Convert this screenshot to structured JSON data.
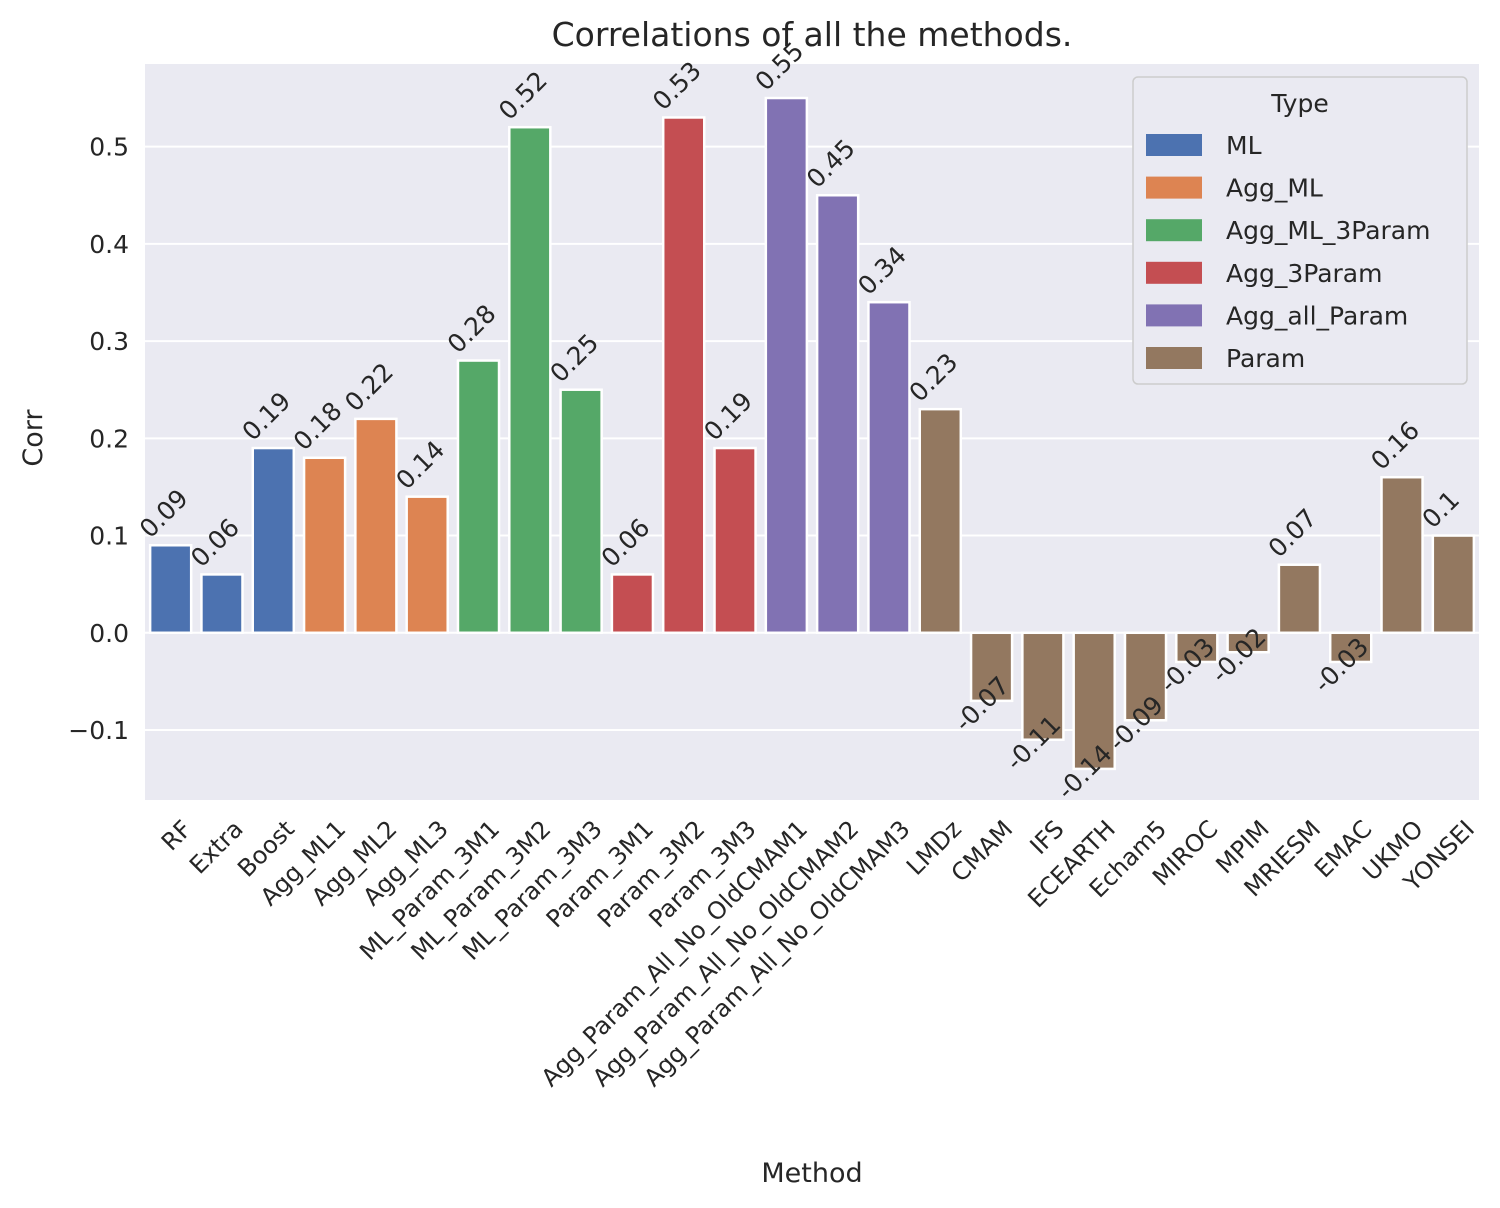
{
  "chart_data": {
    "type": "bar",
    "title": "Correlations of all the methods.",
    "xlabel": "Method",
    "ylabel": "Corr",
    "ylim": [
      -0.172,
      0.585
    ],
    "yticks": [
      -0.1,
      0.0,
      0.1,
      0.2,
      0.3,
      0.4,
      0.5
    ],
    "ytick_labels": [
      "−0.1",
      "0.0",
      "0.1",
      "0.2",
      "0.3",
      "0.4",
      "0.5"
    ],
    "grid": true,
    "legend": {
      "title": "Type",
      "position": "top-right",
      "entries": [
        {
          "name": "ML",
          "color": "#4c72b0"
        },
        {
          "name": "Agg_ML",
          "color": "#dd8452"
        },
        {
          "name": "Agg_ML_3Param",
          "color": "#55a868"
        },
        {
          "name": "Agg_3Param",
          "color": "#c44e52"
        },
        {
          "name": "Agg_all_Param",
          "color": "#8172b3"
        },
        {
          "name": "Param",
          "color": "#937860"
        }
      ]
    },
    "categories": [
      "RF",
      "Extra",
      "Boost",
      "Agg_ML1",
      "Agg_ML2",
      "Agg_ML3",
      "ML_Param_3M1",
      "ML_Param_3M2",
      "ML_Param_3M3",
      "Param_3M1",
      "Param_3M2",
      "Param_3M3",
      "Agg_Param_All_No_OldCMAM1",
      "Agg_Param_All_No_OldCMAM2",
      "Agg_Param_All_No_OldCMAM3",
      "LMDz",
      "CMAM",
      "IFS",
      "ECEARTH",
      "Echam5",
      "MIROC",
      "MPIM",
      "MRIESM",
      "EMAC",
      "UKMO",
      "YONSEI"
    ],
    "values": [
      0.09,
      0.06,
      0.19,
      0.18,
      0.22,
      0.14,
      0.28,
      0.52,
      0.25,
      0.06,
      0.53,
      0.19,
      0.55,
      0.45,
      0.34,
      0.23,
      -0.07,
      -0.11,
      -0.14,
      -0.09,
      -0.03,
      -0.02,
      0.07,
      -0.03,
      0.16,
      0.1
    ],
    "value_labels": [
      "0.09",
      "0.06",
      "0.19",
      "0.18",
      "0.22",
      "0.14",
      "0.28",
      "0.52",
      "0.25",
      "0.06",
      "0.53",
      "0.19",
      "0.55",
      "0.45",
      "0.34",
      "0.23",
      "-0.07",
      "-0.11",
      "-0.14",
      "-0.09",
      "-0.03",
      "-0.02",
      "0.07",
      "-0.03",
      "0.16",
      "0.1"
    ],
    "types": [
      "ML",
      "ML",
      "ML",
      "Agg_ML",
      "Agg_ML",
      "Agg_ML",
      "Agg_ML_3Param",
      "Agg_ML_3Param",
      "Agg_ML_3Param",
      "Agg_3Param",
      "Agg_3Param",
      "Agg_3Param",
      "Agg_all_Param",
      "Agg_all_Param",
      "Agg_all_Param",
      "Param",
      "Param",
      "Param",
      "Param",
      "Param",
      "Param",
      "Param",
      "Param",
      "Param",
      "Param",
      "Param"
    ],
    "colors": {
      "plot_background": "#eaeaf2",
      "grid": "#ffffff",
      "text": "#262626"
    }
  }
}
